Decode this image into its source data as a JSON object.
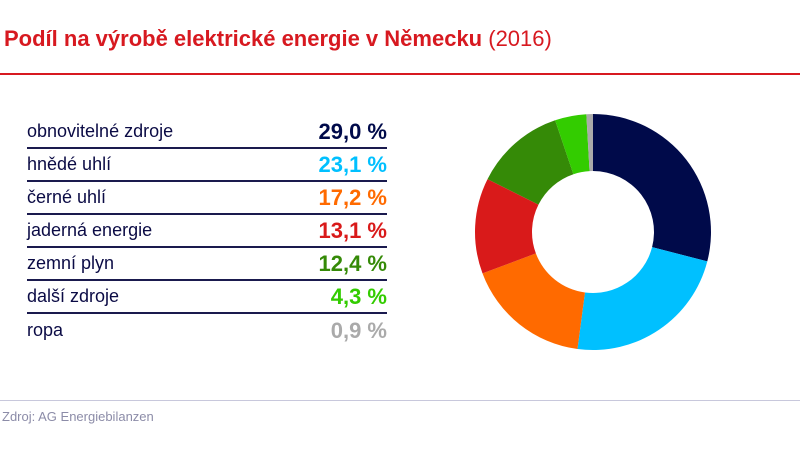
{
  "header": {
    "title_bold": "Podíl na výrobě elektrické energie v Německu",
    "title_year": "(2016)"
  },
  "footer": {
    "source": "Zdroj: AG Energiebilanzen"
  },
  "chart_data": {
    "type": "pie",
    "style": "donut",
    "title": "Podíl na výrobě elektrické energie v Německu (2016)",
    "categories": [
      "obnovitelné zdroje",
      "hnědé uhlí",
      "černé uhlí",
      "jaderná energie",
      "zemní plyn",
      "další zdroje",
      "ropa"
    ],
    "values": [
      29.0,
      23.1,
      17.2,
      13.1,
      12.4,
      4.3,
      0.9
    ],
    "labels": [
      "29,0 %",
      "23,1 %",
      "17,2 %",
      "13,1 %",
      "12,4 %",
      "4,3 %",
      "0,9 %"
    ],
    "colors": [
      "#000a4a",
      "#00c0ff",
      "#ff6a00",
      "#d91a1a",
      "#358a07",
      "#33cc00",
      "#aaaaaa"
    ],
    "unit": "%"
  }
}
